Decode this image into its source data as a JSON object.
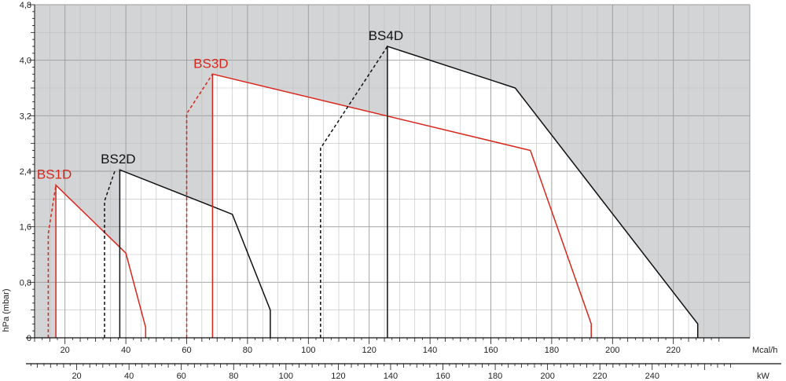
{
  "chart_data": {
    "type": "area",
    "ylabel": "hPa (mbar)",
    "ylim": [
      0,
      4.8
    ],
    "yticks": [
      "0",
      "0,8",
      "1,6",
      "2,4",
      "3,2",
      "4,0",
      "4,8"
    ],
    "x_axes": [
      {
        "unit": "Mcal/h",
        "range": [
          10,
          235
        ],
        "ticks": [
          20,
          40,
          60,
          80,
          100,
          120,
          140,
          160,
          180,
          200,
          220
        ]
      },
      {
        "unit": "kW",
        "range": [
          11.6,
          273.3
        ],
        "ticks": [
          20,
          40,
          60,
          80,
          100,
          120,
          140,
          160,
          180,
          200,
          220,
          240
        ]
      }
    ],
    "background": {
      "outside_range_color": "#d3d4d6",
      "inside_range_color": "#ffffff"
    },
    "series": [
      {
        "name": "BS1D",
        "color": "#d9261c",
        "dashed": [
          [
            14.5,
            0
          ],
          [
            14.5,
            1.5
          ],
          [
            17,
            2.2
          ]
        ],
        "solid": [
          [
            17,
            0
          ],
          [
            17,
            2.2
          ],
          [
            40,
            1.22
          ],
          [
            46.5,
            0.15
          ],
          [
            46.5,
            0
          ]
        ]
      },
      {
        "name": "BS2D",
        "color": "#111111",
        "dashed": [
          [
            33,
            0
          ],
          [
            33,
            1.97
          ],
          [
            36.5,
            2.42
          ]
        ],
        "solid": [
          [
            38,
            0
          ],
          [
            38,
            2.42
          ],
          [
            75,
            1.78
          ],
          [
            87.5,
            0.4
          ],
          [
            87.5,
            0
          ]
        ]
      },
      {
        "name": "BS3D",
        "color": "#d9261c",
        "dashed": [
          [
            60,
            0
          ],
          [
            60,
            3.23
          ],
          [
            68.5,
            3.8
          ]
        ],
        "solid": [
          [
            68.5,
            0
          ],
          [
            68.5,
            3.8
          ],
          [
            173,
            2.7
          ],
          [
            193,
            0.2
          ],
          [
            193,
            0
          ]
        ]
      },
      {
        "name": "BS4D",
        "color": "#111111",
        "dashed": [
          [
            104,
            0
          ],
          [
            104,
            2.73
          ],
          [
            126,
            4.2
          ]
        ],
        "solid": [
          [
            126,
            0
          ],
          [
            126,
            4.2
          ],
          [
            168,
            3.6
          ],
          [
            228,
            0.2
          ],
          [
            228,
            0
          ]
        ]
      }
    ]
  }
}
